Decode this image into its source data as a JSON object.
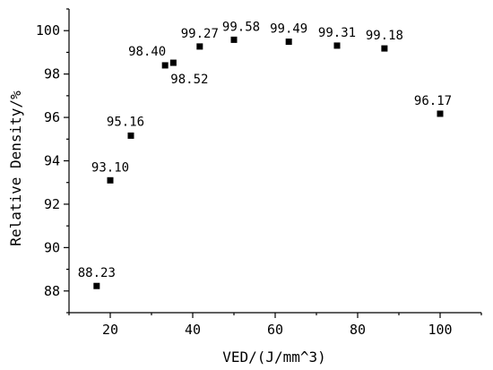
{
  "chart_data": {
    "type": "scatter",
    "xlabel": "VED/(J/mm^3)",
    "ylabel": "Relative Density/%",
    "xlim": [
      10,
      110
    ],
    "ylim": [
      87,
      101
    ],
    "xticks": [
      20,
      40,
      60,
      80,
      100
    ],
    "yticks": [
      88,
      90,
      92,
      94,
      96,
      98,
      100
    ],
    "grid": false,
    "marker": "square",
    "color": "#000000",
    "points": [
      {
        "x": 16.7,
        "y": 88.23,
        "label": "88.23"
      },
      {
        "x": 20.0,
        "y": 93.1,
        "label": "93.10"
      },
      {
        "x": 25.0,
        "y": 95.16,
        "label": "95.16"
      },
      {
        "x": 33.3,
        "y": 98.4,
        "label": "98.40"
      },
      {
        "x": 35.3,
        "y": 98.52,
        "label": "98.52"
      },
      {
        "x": 41.7,
        "y": 99.27,
        "label": "99.27"
      },
      {
        "x": 50.0,
        "y": 99.58,
        "label": "99.58"
      },
      {
        "x": 63.3,
        "y": 99.49,
        "label": "99.49"
      },
      {
        "x": 75.0,
        "y": 99.31,
        "label": "99.31"
      },
      {
        "x": 86.5,
        "y": 99.18,
        "label": "99.18"
      },
      {
        "x": 100.0,
        "y": 96.17,
        "label": "96.17"
      }
    ]
  }
}
